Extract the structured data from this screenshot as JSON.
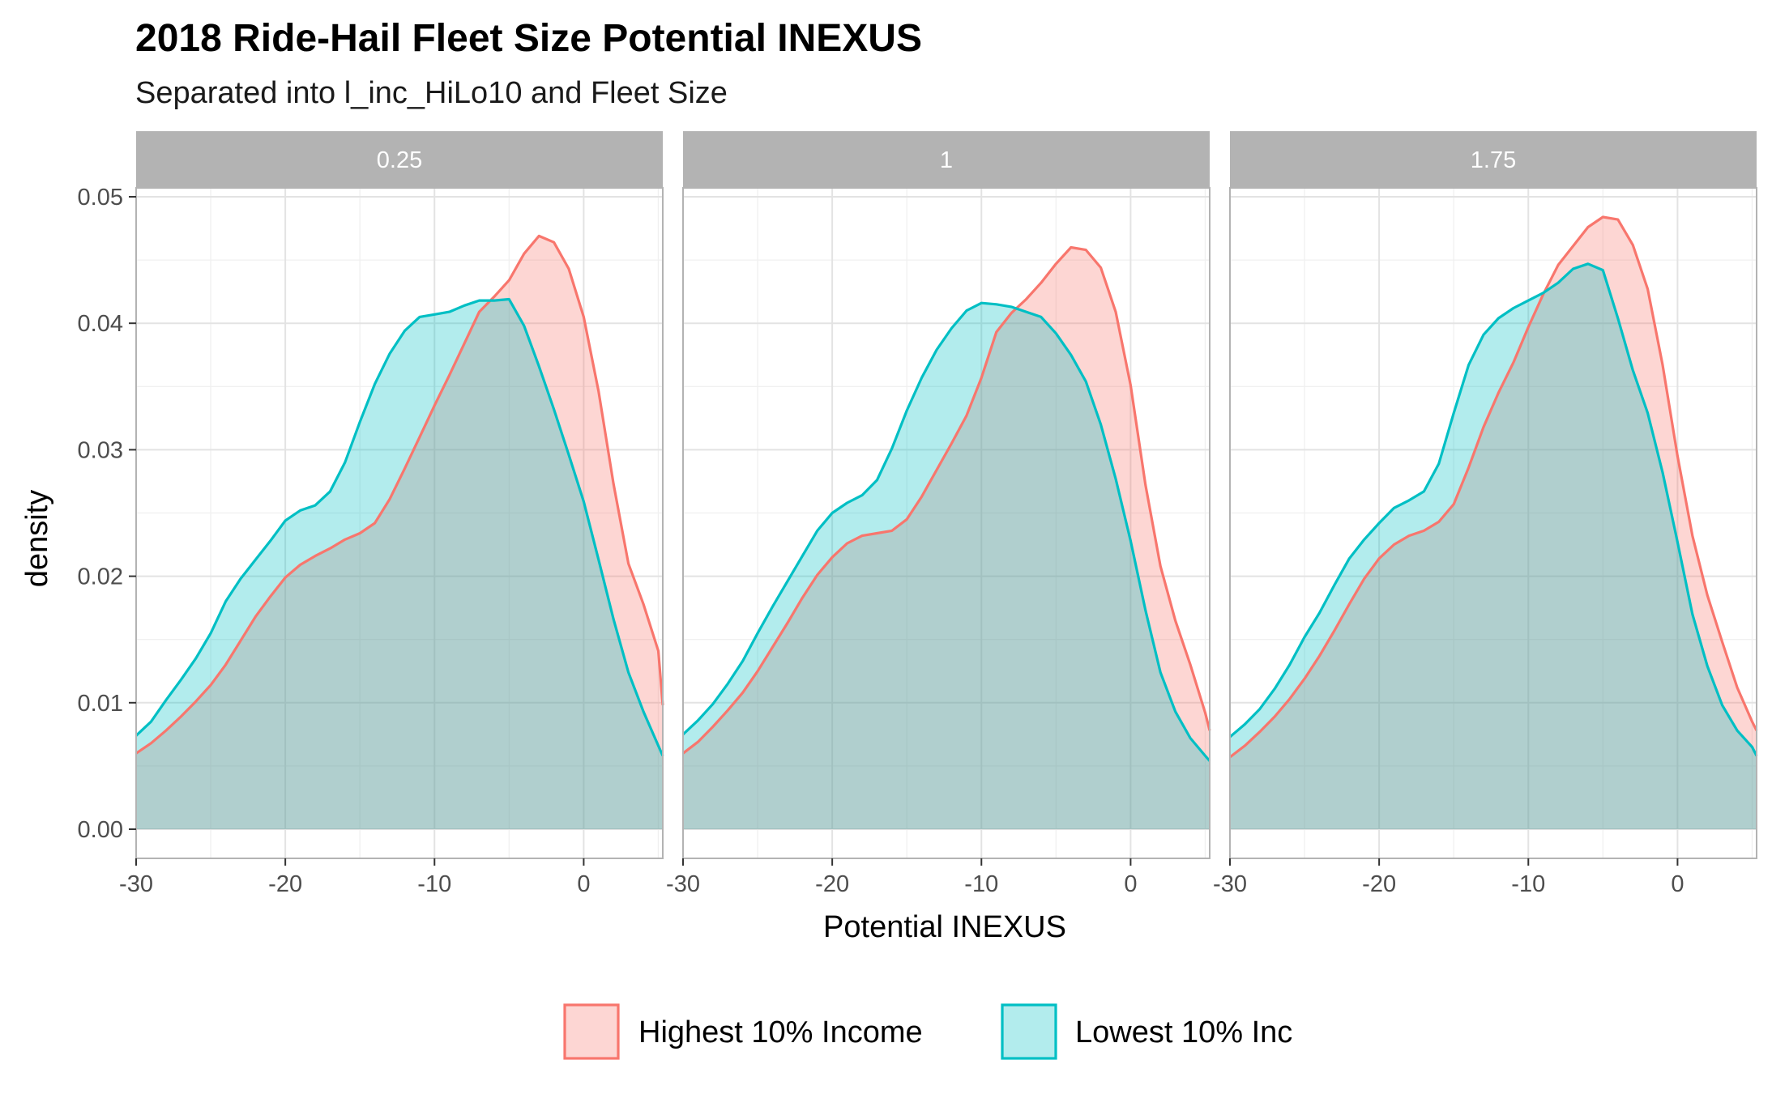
{
  "chart_data": {
    "type": "area",
    "title": "2018 Ride-Hail Fleet Size Potential INEXUS",
    "subtitle": "Separated into l_inc_HiLo10 and Fleet Size",
    "xlabel": "Potential INEXUS",
    "ylabel": "density",
    "xlim": [
      -30,
      5.3
    ],
    "ylim": [
      0,
      0.05
    ],
    "x_ticks": [
      "-30",
      "-20",
      "-10",
      "0"
    ],
    "y_ticks": [
      "0.00",
      "0.01",
      "0.02",
      "0.03",
      "0.04",
      "0.05"
    ],
    "grid": true,
    "legend_position": "bottom",
    "legend": [
      {
        "name": "Highest 10% Income",
        "line": "#F8766D",
        "fill": "#F8766D"
      },
      {
        "name": "Lowest 10% Inc",
        "line": "#00BFC4",
        "fill": "#00BFC4"
      }
    ],
    "panels": [
      {
        "label": "0.25",
        "series": [
          {
            "name": "Highest 10% Income",
            "x": [
              -30,
              -29,
              -28,
              -27,
              -26,
              -25,
              -24,
              -23,
              -22,
              -21,
              -20,
              -19,
              -18,
              -17,
              -16,
              -15,
              -14,
              -13,
              -12,
              -11,
              -10,
              -9,
              -8,
              -7,
              -6,
              -5,
              -4,
              -3,
              -2,
              -1,
              0,
              1,
              2,
              3,
              4,
              5,
              5.3
            ],
            "y": [
              0.006,
              0.0068,
              0.0078,
              0.0089,
              0.0101,
              0.0114,
              0.013,
              0.0149,
              0.0168,
              0.0184,
              0.0199,
              0.0209,
              0.0216,
              0.0222,
              0.0229,
              0.0234,
              0.0242,
              0.0261,
              0.0285,
              0.031,
              0.0335,
              0.0359,
              0.0384,
              0.0409,
              0.0421,
              0.0434,
              0.0455,
              0.0469,
              0.0464,
              0.0443,
              0.0405,
              0.0346,
              0.0273,
              0.021,
              0.0178,
              0.0141,
              0.0098
            ]
          },
          {
            "name": "Lowest 10% Inc",
            "x": [
              -30,
              -29,
              -28,
              -27,
              -26,
              -25,
              -24,
              -23,
              -22,
              -21,
              -20,
              -19,
              -18,
              -17,
              -16,
              -15,
              -14,
              -13,
              -12,
              -11,
              -10,
              -9,
              -8,
              -7,
              -6,
              -5,
              -4,
              -3,
              -2,
              -1,
              0,
              1,
              2,
              3,
              4,
              5,
              5.3
            ],
            "y": [
              0.0074,
              0.0085,
              0.0102,
              0.0118,
              0.0135,
              0.0155,
              0.018,
              0.0198,
              0.0213,
              0.0228,
              0.0244,
              0.0252,
              0.0256,
              0.0267,
              0.029,
              0.0322,
              0.0352,
              0.0376,
              0.0394,
              0.0405,
              0.0407,
              0.0409,
              0.0414,
              0.0418,
              0.0418,
              0.0419,
              0.0398,
              0.0366,
              0.0332,
              0.0296,
              0.0259,
              0.0213,
              0.0166,
              0.0124,
              0.0093,
              0.0066,
              0.0058
            ]
          }
        ]
      },
      {
        "label": "1",
        "series": [
          {
            "name": "Highest 10% Income",
            "x": [
              -30,
              -29,
              -28,
              -27,
              -26,
              -25,
              -24,
              -23,
              -22,
              -21,
              -20,
              -19,
              -18,
              -17,
              -16,
              -15,
              -14,
              -13,
              -12,
              -11,
              -10,
              -9,
              -8,
              -7,
              -6,
              -5,
              -4,
              -3,
              -2,
              -1,
              0,
              1,
              2,
              3,
              4,
              5,
              5.3
            ],
            "y": [
              0.006,
              0.0069,
              0.0081,
              0.0094,
              0.0108,
              0.0125,
              0.0144,
              0.0163,
              0.0183,
              0.0201,
              0.0215,
              0.0226,
              0.0232,
              0.0234,
              0.0236,
              0.0245,
              0.0263,
              0.0284,
              0.0305,
              0.0327,
              0.0357,
              0.0393,
              0.0408,
              0.0419,
              0.0432,
              0.0447,
              0.046,
              0.0458,
              0.0444,
              0.0409,
              0.0351,
              0.0272,
              0.0208,
              0.0165,
              0.013,
              0.0092,
              0.0078
            ]
          },
          {
            "name": "Lowest 10% Inc",
            "x": [
              -30,
              -29,
              -28,
              -27,
              -26,
              -25,
              -24,
              -23,
              -22,
              -21,
              -20,
              -19,
              -18,
              -17,
              -16,
              -15,
              -14,
              -13,
              -12,
              -11,
              -10,
              -9,
              -8,
              -7,
              -6,
              -5,
              -4,
              -3,
              -2,
              -1,
              0,
              1,
              2,
              3,
              4,
              5,
              5.3
            ],
            "y": [
              0.0075,
              0.0086,
              0.0099,
              0.0115,
              0.0133,
              0.0155,
              0.0176,
              0.0196,
              0.0216,
              0.0236,
              0.025,
              0.0258,
              0.0264,
              0.0276,
              0.0301,
              0.0331,
              0.0357,
              0.0379,
              0.0396,
              0.041,
              0.0416,
              0.0415,
              0.0413,
              0.0409,
              0.0405,
              0.0392,
              0.0375,
              0.0354,
              0.032,
              0.0277,
              0.0228,
              0.0173,
              0.0124,
              0.0093,
              0.0072,
              0.0058,
              0.0054
            ]
          }
        ]
      },
      {
        "label": "1.75",
        "series": [
          {
            "name": "Highest 10% Income",
            "x": [
              -30,
              -29,
              -28,
              -27,
              -26,
              -25,
              -24,
              -23,
              -22,
              -21,
              -20,
              -19,
              -18,
              -17,
              -16,
              -15,
              -14,
              -13,
              -12,
              -11,
              -10,
              -9,
              -8,
              -7,
              -6,
              -5,
              -4,
              -3,
              -2,
              -1,
              0,
              1,
              2,
              3,
              4,
              5,
              5.3
            ],
            "y": [
              0.0057,
              0.0066,
              0.0077,
              0.0089,
              0.0103,
              0.0119,
              0.0137,
              0.0157,
              0.0178,
              0.0198,
              0.0214,
              0.0225,
              0.0232,
              0.0236,
              0.0243,
              0.0257,
              0.0286,
              0.0318,
              0.0345,
              0.0369,
              0.0397,
              0.0423,
              0.0446,
              0.0461,
              0.0476,
              0.0484,
              0.0482,
              0.0462,
              0.0427,
              0.0367,
              0.0295,
              0.0232,
              0.0185,
              0.0148,
              0.0112,
              0.0085,
              0.0078
            ]
          },
          {
            "name": "Lowest 10% Inc",
            "x": [
              -30,
              -29,
              -28,
              -27,
              -26,
              -25,
              -24,
              -23,
              -22,
              -21,
              -20,
              -19,
              -18,
              -17,
              -16,
              -15,
              -14,
              -13,
              -12,
              -11,
              -10,
              -9,
              -8,
              -7,
              -6,
              -5,
              -4,
              -3,
              -2,
              -1,
              0,
              1,
              2,
              3,
              4,
              5,
              5.3
            ],
            "y": [
              0.0073,
              0.0083,
              0.0095,
              0.0111,
              0.013,
              0.0152,
              0.0171,
              0.0193,
              0.0214,
              0.0229,
              0.0242,
              0.0254,
              0.026,
              0.0267,
              0.0289,
              0.0329,
              0.0367,
              0.0391,
              0.0404,
              0.0412,
              0.0418,
              0.0424,
              0.0432,
              0.0443,
              0.0447,
              0.0442,
              0.0404,
              0.0363,
              0.0329,
              0.0282,
              0.0227,
              0.017,
              0.0129,
              0.0098,
              0.0078,
              0.0065,
              0.0058
            ]
          }
        ]
      }
    ]
  }
}
